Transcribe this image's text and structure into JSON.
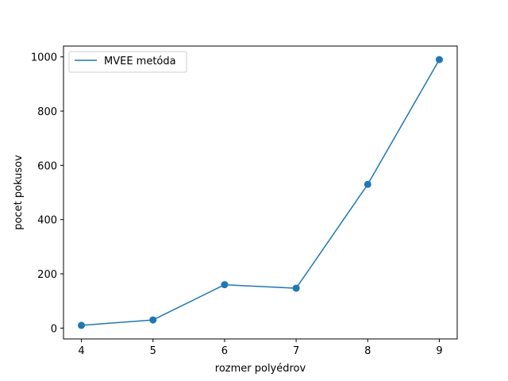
{
  "chart_data": {
    "type": "line",
    "xlabel": "rozmer polyédrov",
    "ylabel": "pocet pokusov",
    "xlim": [
      3.75,
      9.25
    ],
    "ylim": [
      -40,
      1040
    ],
    "x_ticks": [
      4,
      5,
      6,
      7,
      8,
      9
    ],
    "y_ticks": [
      0,
      200,
      400,
      600,
      800,
      1000
    ],
    "grid": false,
    "legend_position": "top-left",
    "series": [
      {
        "name": "MVEE metóda",
        "color": "#1f77b4",
        "marker": "circle",
        "x": [
          4,
          5,
          6,
          7,
          8,
          9
        ],
        "y": [
          10,
          30,
          160,
          147,
          530,
          990
        ]
      }
    ]
  }
}
